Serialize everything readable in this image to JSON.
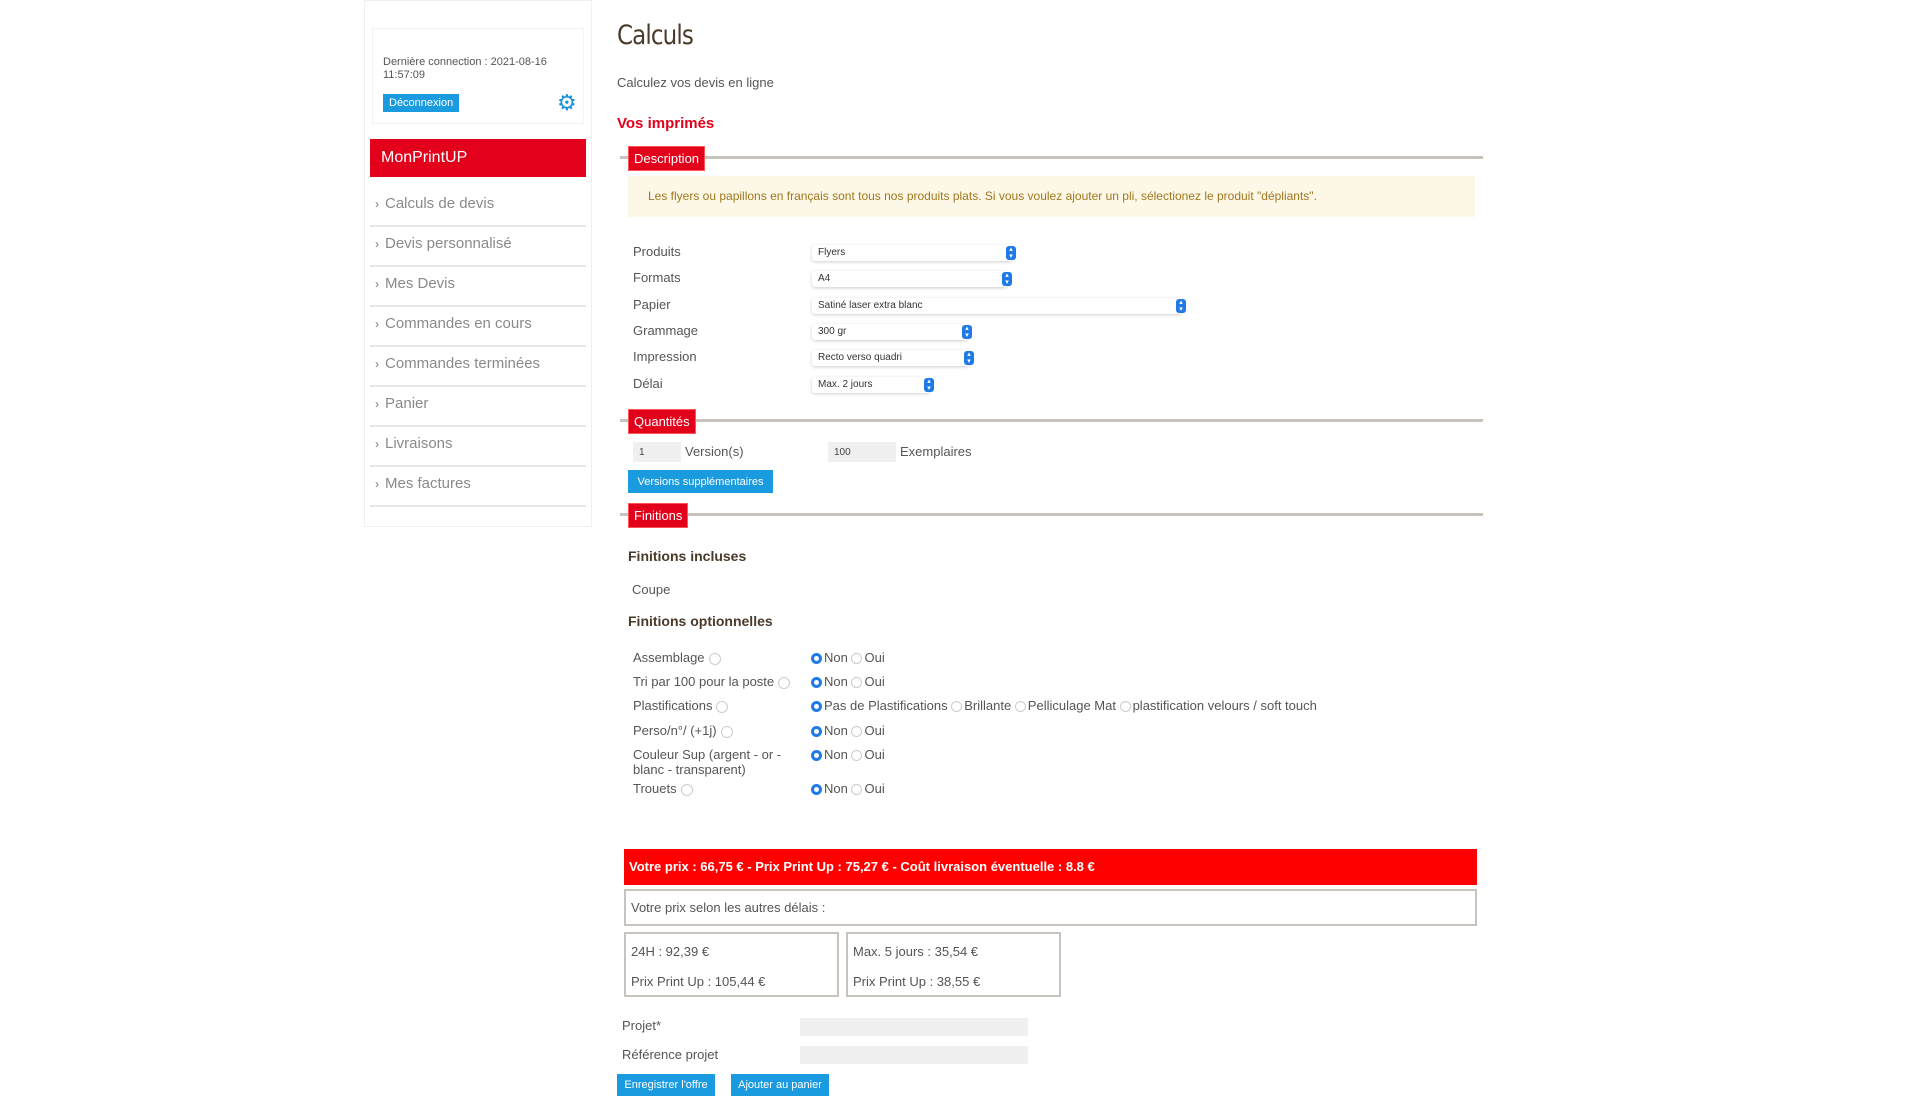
{
  "sidebar": {
    "last_connection": "Dernière connection : 2021-08-16 11:57:09",
    "logout_label": "Déconnexion",
    "settings_icon": "gear-icon",
    "brand": "MonPrintUP",
    "items": [
      {
        "label": "Calculs de devis"
      },
      {
        "label": "Devis personnalisé"
      },
      {
        "label": "Mes Devis"
      },
      {
        "label": "Commandes en cours"
      },
      {
        "label": "Commandes terminées"
      },
      {
        "label": "Panier"
      },
      {
        "label": "Livraisons"
      },
      {
        "label": "Mes factures"
      }
    ]
  },
  "main": {
    "title": "Calculs",
    "subtitle": "Calculez vos devis en ligne",
    "section_title": "Vos imprimés",
    "description": {
      "legend": "Description",
      "notice": "Les flyers ou papillons en français sont tous nos produits plats. Si vous voulez ajouter un pli, sélectionez le produit \"dépliants\".",
      "fields": [
        {
          "label": "Produits",
          "value": "Flyers"
        },
        {
          "label": "Formats",
          "value": "A4"
        },
        {
          "label": "Papier",
          "value": "Satiné laser extra blanc"
        },
        {
          "label": "Grammage",
          "value": "300 gr"
        },
        {
          "label": "Impression",
          "value": "Recto verso quadri"
        },
        {
          "label": "Délai",
          "value": "Max. 2 jours"
        }
      ]
    },
    "quantities": {
      "legend": "Quantités",
      "versions_value": "1",
      "versions_label": "Version(s)",
      "copies_value": "100",
      "copies_label": "Exemplaires",
      "extra_versions_button": "Versions supplémentaires"
    },
    "finishes": {
      "legend": "Finitions",
      "included_title": "Finitions incluses",
      "included": "Coupe",
      "optional_title": "Finitions optionnelles",
      "options": [
        {
          "label": "Assemblage",
          "choices": [
            "Non",
            "Oui"
          ],
          "selected": "Non"
        },
        {
          "label": "Tri par 100 pour la poste",
          "choices": [
            "Non",
            "Oui"
          ],
          "selected": "Non"
        },
        {
          "label": "Plastifications",
          "choices": [
            "Pas de Plastifications",
            "Brillante",
            "Pelliculage Mat",
            "plastification velours / soft touch"
          ],
          "selected": "Pas de Plastifications"
        },
        {
          "label": "Perso/n°/ (+1j)",
          "choices": [
            "Non",
            "Oui"
          ],
          "selected": "Non"
        },
        {
          "label": "Couleur Sup (argent - or - blanc - transparent)",
          "choices": [
            "Non",
            "Oui"
          ],
          "selected": "Non"
        },
        {
          "label": "Trouets",
          "choices": [
            "Non",
            "Oui"
          ],
          "selected": "Non"
        }
      ]
    },
    "price": {
      "summary": "Votre prix : 66,75 € - Prix Print Up : 75,27 € - Coût livraison éventuelle : 8.8 €",
      "other_delays_label": "Votre prix selon les autres délais :",
      "alternatives": [
        {
          "line1": "24H : 92,39 €",
          "line2": "Prix Print Up : 105,44 €"
        },
        {
          "line1": "Max. 5 jours : 35,54 €",
          "line2": "Prix Print Up : 38,55 €"
        }
      ]
    },
    "project": {
      "project_label": "Projet*",
      "project_value": "",
      "reference_label": "Référence projet",
      "reference_value": "",
      "save_button": "Enregistrer l'offre",
      "cart_button": "Ajouter au panier"
    }
  },
  "colors": {
    "brand_red": "#e2001a",
    "price_red": "#ff0000",
    "button_blue": "#1a9be0",
    "notice_bg": "#fcf7e6"
  }
}
